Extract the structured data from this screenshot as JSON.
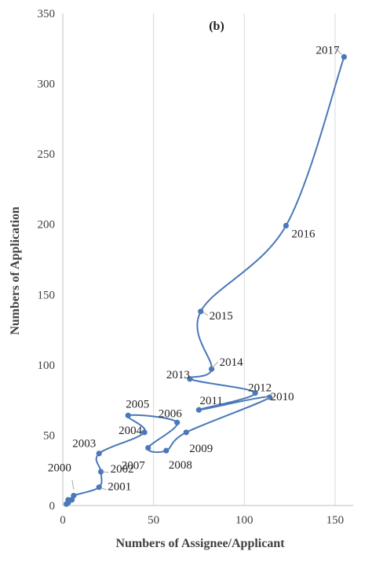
{
  "chart_data": {
    "type": "line",
    "panel_label": "(b)",
    "xlabel": "Numbers of Assignee/Applicant",
    "ylabel": "Numbers of Application",
    "xlim": [
      0,
      160
    ],
    "ylim": [
      0,
      350
    ],
    "x_ticks": [
      0,
      50,
      100,
      150
    ],
    "y_ticks": [
      0,
      50,
      100,
      150,
      200,
      250,
      300,
      350
    ],
    "grid": "vertical",
    "line_color": "#4a78b8",
    "smoothed": true,
    "points": [
      {
        "year": "",
        "x": 2,
        "y": 1
      },
      {
        "year": "",
        "x": 3,
        "y": 2
      },
      {
        "year": "",
        "x": 3,
        "y": 4
      },
      {
        "year": "",
        "x": 5,
        "y": 4
      },
      {
        "year": "2000",
        "x": 6,
        "y": 7
      },
      {
        "year": "2001",
        "x": 20,
        "y": 13
      },
      {
        "year": "2002",
        "x": 21,
        "y": 24
      },
      {
        "year": "2003",
        "x": 20,
        "y": 37
      },
      {
        "year": "2004",
        "x": 45,
        "y": 52
      },
      {
        "year": "2005",
        "x": 36,
        "y": 64
      },
      {
        "year": "2006",
        "x": 63,
        "y": 59
      },
      {
        "year": "2007",
        "x": 47,
        "y": 41
      },
      {
        "year": "2008",
        "x": 57,
        "y": 39
      },
      {
        "year": "2009",
        "x": 68,
        "y": 52
      },
      {
        "year": "2010",
        "x": 114,
        "y": 77
      },
      {
        "year": "2011",
        "x": 75,
        "y": 68
      },
      {
        "year": "2012",
        "x": 106,
        "y": 80
      },
      {
        "year": "2013",
        "x": 70,
        "y": 90
      },
      {
        "year": "2014",
        "x": 82,
        "y": 97
      },
      {
        "year": "2015",
        "x": 76,
        "y": 138
      },
      {
        "year": "2016",
        "x": 123,
        "y": 199
      },
      {
        "year": "2017",
        "x": 155,
        "y": 319
      }
    ]
  }
}
